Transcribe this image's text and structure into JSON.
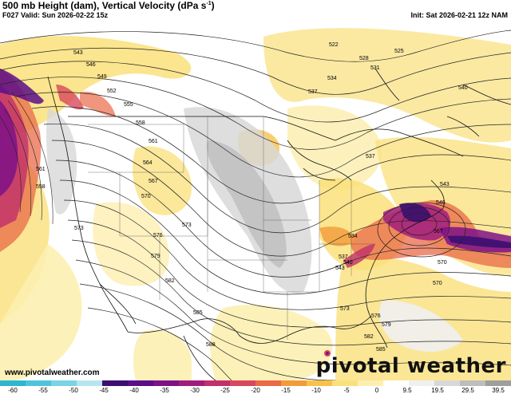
{
  "header": {
    "title_main": "500 mb Height (dam), Vertical Velocity (dPa s",
    "title_sup": "-1",
    "title_end": ")",
    "valid": "F027 Valid: Sun 2026-02-22 15z",
    "init": "Init: Sat 2026-02-21 12z NAM"
  },
  "footer": {
    "site": "www.pivotalweather.com",
    "brand": "pivotal weather"
  },
  "colorbar": {
    "ticks": [
      "-60",
      "-55",
      "-50",
      "-45",
      "-40",
      "-35",
      "-30",
      "-25",
      "-20",
      "-15",
      "-10",
      "-5",
      "0",
      "9.5",
      "19.5",
      "29.5",
      "39.5"
    ],
    "colors": [
      "#2fb6cf",
      "#4fc3dc",
      "#7bd3e6",
      "#b5e6f0",
      "#3b0f70",
      "#5a0e8a",
      "#7e1288",
      "#a01d7e",
      "#c1306c",
      "#d9475c",
      "#ea6a47",
      "#f39a3a",
      "#f8c24a",
      "#fae07a",
      "#fcefb0",
      "#ffffff",
      "#f0f0f0",
      "#d8d8d8",
      "#bdbdbd",
      "#9e9e9e"
    ]
  },
  "height_labels": [
    {
      "text": "543"
    },
    {
      "text": "546"
    },
    {
      "text": "549"
    },
    {
      "text": "552"
    },
    {
      "text": "555"
    },
    {
      "text": "558"
    },
    {
      "text": "561"
    },
    {
      "text": "564"
    },
    {
      "text": "567"
    },
    {
      "text": "570"
    },
    {
      "text": "573"
    },
    {
      "text": "576"
    },
    {
      "text": "579"
    },
    {
      "text": "582"
    },
    {
      "text": "585"
    },
    {
      "text": "588"
    },
    {
      "text": "522"
    },
    {
      "text": "525"
    },
    {
      "text": "528"
    },
    {
      "text": "531"
    },
    {
      "text": "534"
    },
    {
      "text": "537"
    },
    {
      "text": "540"
    },
    {
      "text": "543"
    },
    {
      "text": "546"
    },
    {
      "text": "537"
    },
    {
      "text": "534"
    },
    {
      "text": "537"
    },
    {
      "text": "540"
    },
    {
      "text": "543"
    },
    {
      "text": "570"
    },
    {
      "text": "573"
    },
    {
      "text": "576"
    },
    {
      "text": "579"
    },
    {
      "text": "582"
    },
    {
      "text": "585"
    },
    {
      "text": "561"
    },
    {
      "text": "558"
    },
    {
      "text": "573"
    },
    {
      "text": "567"
    },
    {
      "text": "570"
    }
  ]
}
